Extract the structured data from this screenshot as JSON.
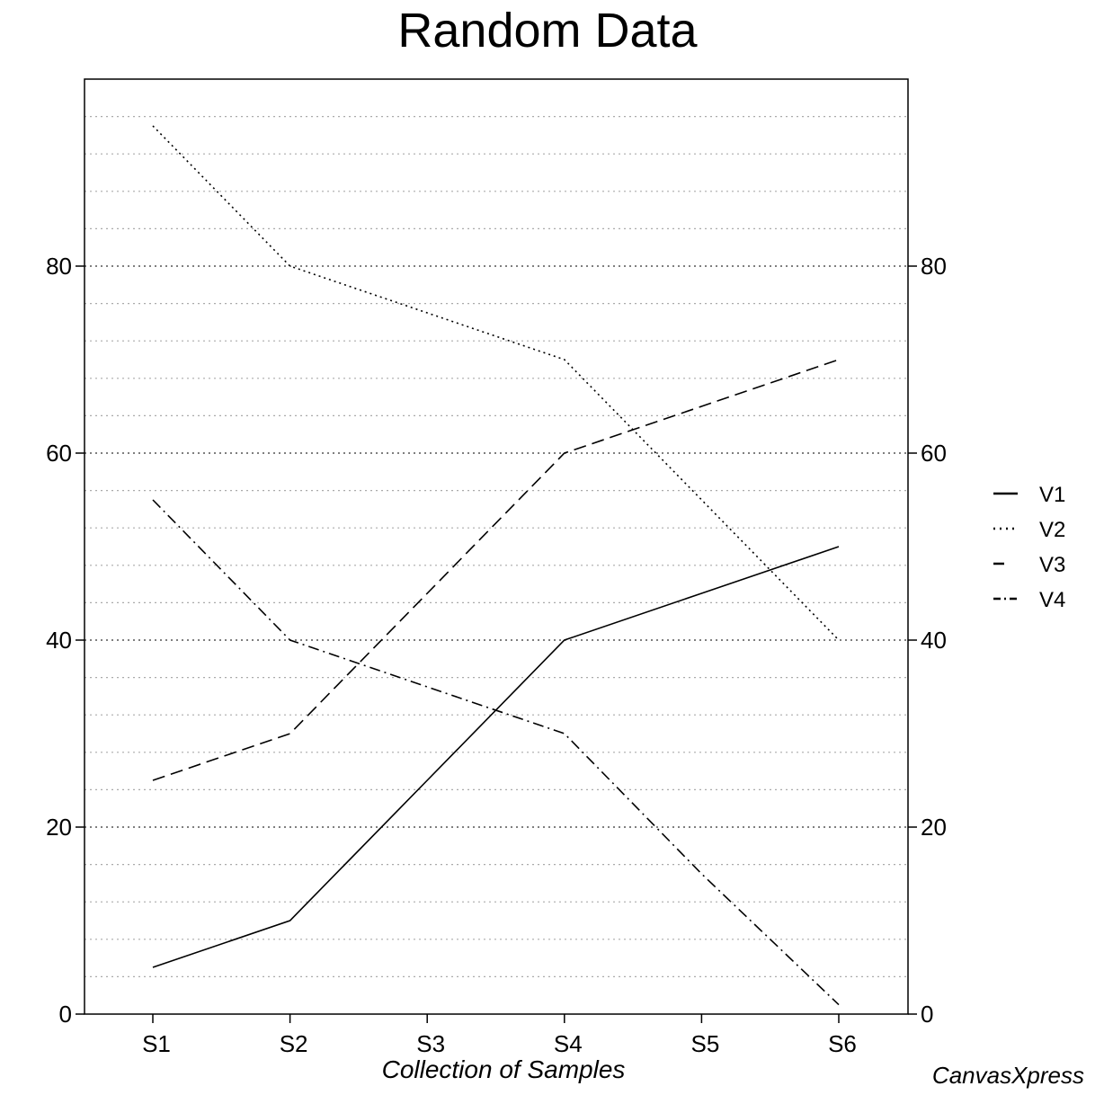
{
  "chart_data": {
    "type": "line",
    "title": "Random Data",
    "xlabel": "Collection of Samples",
    "ylabel": "",
    "categories": [
      "S1",
      "S2",
      "S3",
      "S4",
      "S5",
      "S6"
    ],
    "ylim": [
      0,
      100
    ],
    "yticks": [
      0,
      20,
      40,
      60,
      80
    ],
    "minor_grid_step": 4,
    "grid": true,
    "right_axis": true,
    "legend_position": "right",
    "series": [
      {
        "name": "V1",
        "style": "solid",
        "values": [
          5,
          10,
          25,
          40,
          45,
          50
        ]
      },
      {
        "name": "V2",
        "style": "dotted",
        "values": [
          95,
          80,
          75,
          70,
          55,
          40
        ]
      },
      {
        "name": "V3",
        "style": "dashed",
        "values": [
          25,
          30,
          45,
          60,
          65,
          70
        ]
      },
      {
        "name": "V4",
        "style": "dashdot",
        "values": [
          55,
          40,
          35,
          30,
          15,
          1
        ]
      }
    ]
  },
  "watermark": "CanvasXpress",
  "colors": {
    "line": "#000000",
    "grid": "#888888",
    "background": "#ffffff"
  }
}
